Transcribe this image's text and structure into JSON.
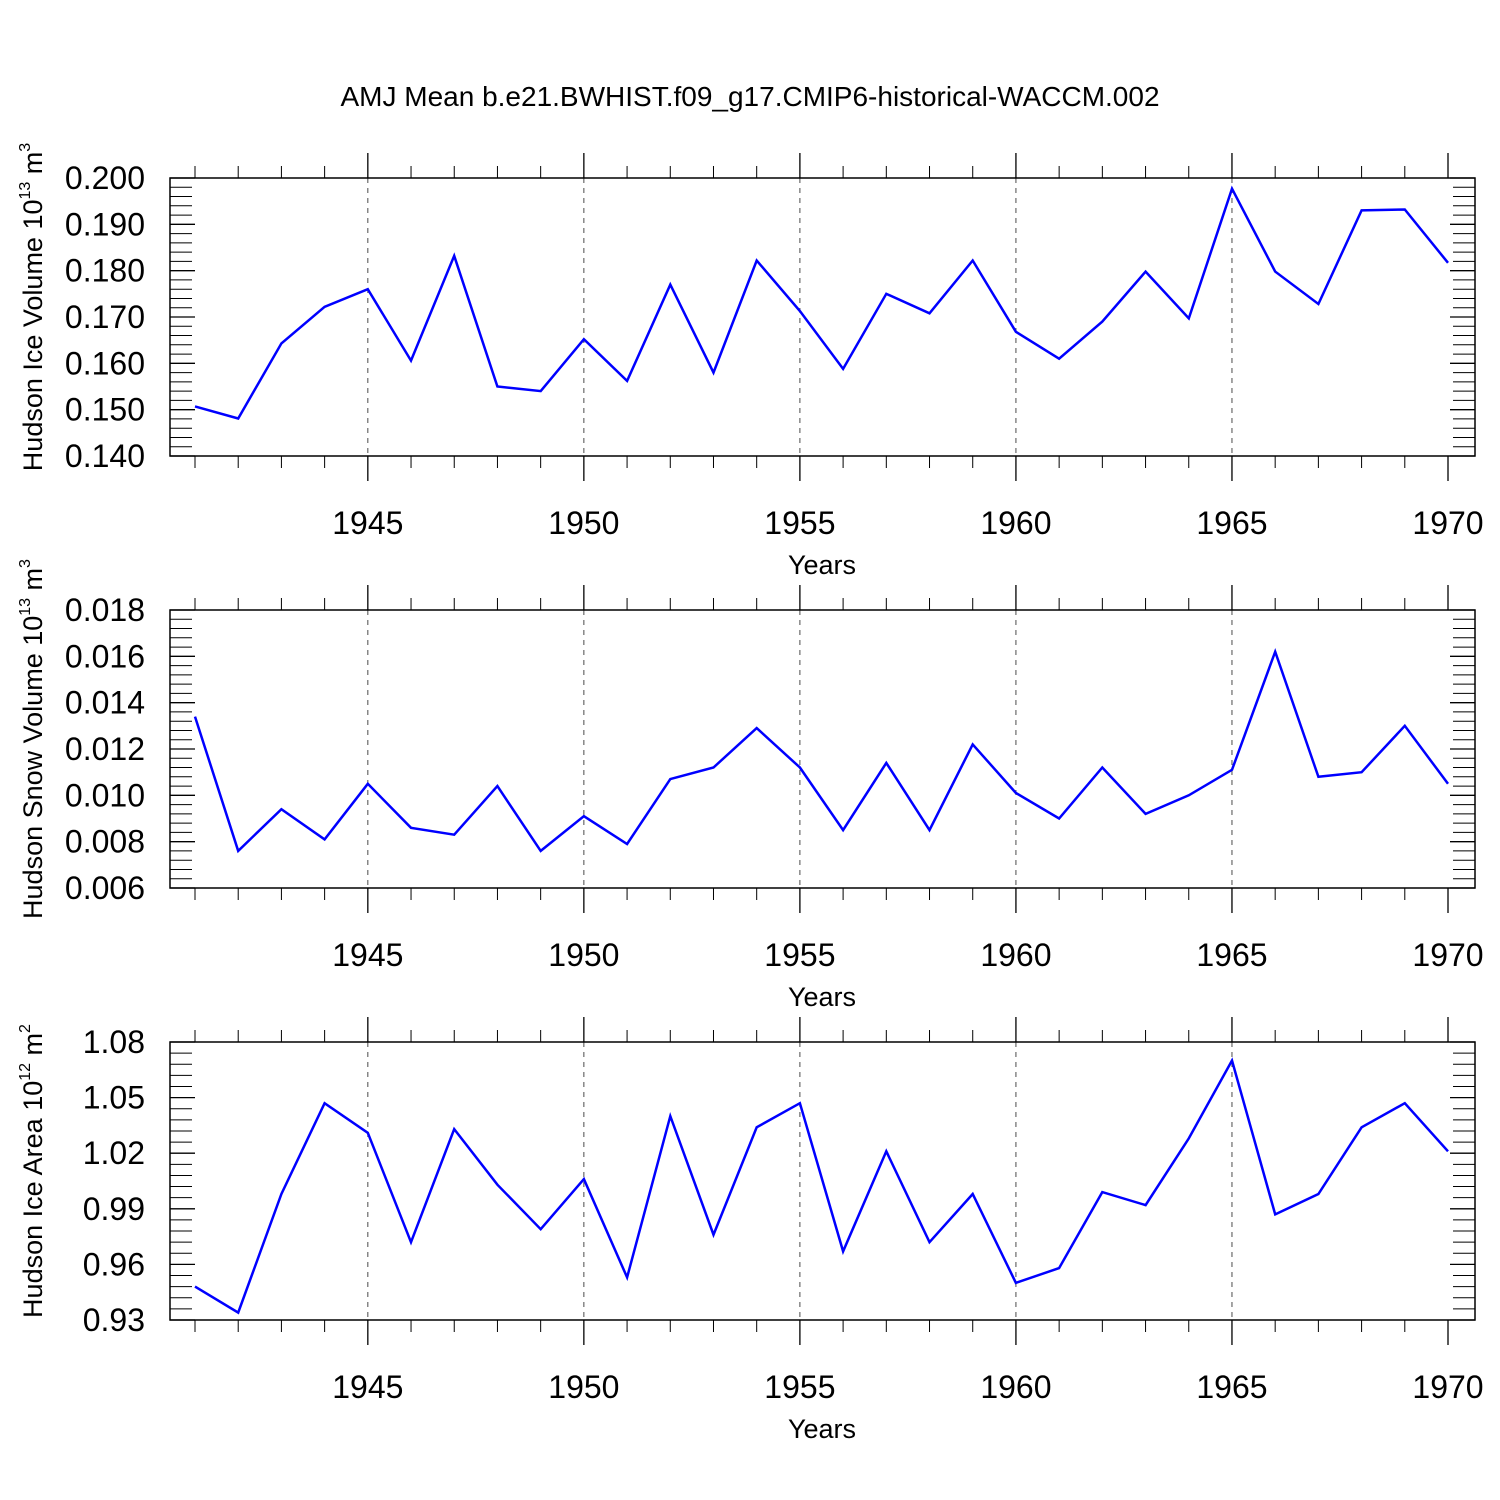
{
  "title": "AMJ Mean b.e21.BWHIST.f09_g17.CMIP6-historical-WACCM.002",
  "colors": {
    "line": "#0000ff",
    "axis": "#000000",
    "grid": "#000000"
  },
  "chart_data": [
    {
      "type": "line",
      "xlabel": "Years",
      "ylabel": {
        "text": "Hudson Ice Volume 10",
        "exp": "13",
        "unit": " m",
        "unit_exp": "3"
      },
      "xlim": [
        1941,
        1970
      ],
      "ylim": [
        0.14,
        0.2
      ],
      "xticks": [
        "1945",
        "1950",
        "1955",
        "1960",
        "1965",
        "1970"
      ],
      "yticks": [
        "0.140",
        "0.150",
        "0.160",
        "0.170",
        "0.180",
        "0.190",
        "0.200"
      ],
      "grid": "vertical dashed at labeled years",
      "x": [
        1941,
        1942,
        1943,
        1944,
        1945,
        1946,
        1947,
        1948,
        1949,
        1950,
        1951,
        1952,
        1953,
        1954,
        1955,
        1956,
        1957,
        1958,
        1959,
        1960,
        1961,
        1962,
        1963,
        1964,
        1965,
        1966,
        1967,
        1968,
        1969,
        1970
      ],
      "values": [
        0.1507,
        0.1481,
        0.1643,
        0.1722,
        0.176,
        0.1606,
        0.1832,
        0.155,
        0.154,
        0.1652,
        0.1562,
        0.177,
        0.158,
        0.1822,
        0.1713,
        0.1588,
        0.175,
        0.1708,
        0.1822,
        0.1668,
        0.161,
        0.169,
        0.1798,
        0.1697,
        0.1977,
        0.1798,
        0.1728,
        0.193,
        0.1932,
        0.1817
      ]
    },
    {
      "type": "line",
      "xlabel": "Years",
      "ylabel": {
        "text": "Hudson Snow Volume 10",
        "exp": "13",
        "unit": " m",
        "unit_exp": "3"
      },
      "xlim": [
        1941,
        1970
      ],
      "ylim": [
        0.006,
        0.018
      ],
      "xticks": [
        "1945",
        "1950",
        "1955",
        "1960",
        "1965",
        "1970"
      ],
      "yticks": [
        "0.006",
        "0.008",
        "0.010",
        "0.012",
        "0.014",
        "0.016",
        "0.018"
      ],
      "grid": "vertical dashed at labeled years",
      "x": [
        1941,
        1942,
        1943,
        1944,
        1945,
        1946,
        1947,
        1948,
        1949,
        1950,
        1951,
        1952,
        1953,
        1954,
        1955,
        1956,
        1957,
        1958,
        1959,
        1960,
        1961,
        1962,
        1963,
        1964,
        1965,
        1966,
        1967,
        1968,
        1969,
        1970
      ],
      "values": [
        0.0134,
        0.0076,
        0.0094,
        0.0081,
        0.0105,
        0.0086,
        0.0083,
        0.0104,
        0.0076,
        0.0091,
        0.0079,
        0.0107,
        0.0112,
        0.0129,
        0.0112,
        0.0085,
        0.0114,
        0.0085,
        0.0122,
        0.0101,
        0.009,
        0.0112,
        0.0092,
        0.01,
        0.0111,
        0.0162,
        0.0108,
        0.011,
        0.013,
        0.0105
      ]
    },
    {
      "type": "line",
      "xlabel": "Years",
      "ylabel": {
        "text": "Hudson Ice Area 10",
        "exp": "12",
        "unit": " m",
        "unit_exp": "2"
      },
      "xlim": [
        1941,
        1970
      ],
      "ylim": [
        0.93,
        1.08
      ],
      "xticks": [
        "1945",
        "1950",
        "1955",
        "1960",
        "1965",
        "1970"
      ],
      "yticks": [
        "0.93",
        "0.96",
        "0.99",
        "1.02",
        "1.05",
        "1.08"
      ],
      "grid": "vertical dashed at labeled years",
      "x": [
        1941,
        1942,
        1943,
        1944,
        1945,
        1946,
        1947,
        1948,
        1949,
        1950,
        1951,
        1952,
        1953,
        1954,
        1955,
        1956,
        1957,
        1958,
        1959,
        1960,
        1961,
        1962,
        1963,
        1964,
        1965,
        1966,
        1967,
        1968,
        1969,
        1970
      ],
      "values": [
        0.948,
        0.934,
        0.998,
        1.047,
        1.031,
        0.972,
        1.033,
        1.003,
        0.979,
        1.006,
        0.953,
        1.04,
        0.976,
        1.034,
        1.047,
        0.967,
        1.021,
        0.972,
        0.998,
        0.95,
        0.958,
        0.999,
        0.992,
        1.028,
        1.07,
        0.987,
        0.998,
        1.034,
        1.047,
        1.021
      ]
    }
  ]
}
